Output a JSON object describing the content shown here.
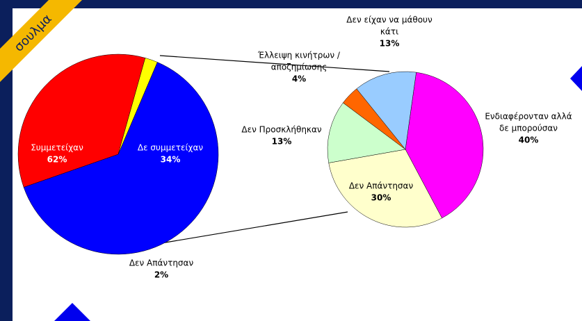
{
  "ribbon": "σουλμα",
  "chart_data": [
    {
      "type": "pie",
      "categories": [
        [
          "Συμμετείχαν"
        ],
        [
          "Δε συμμετείχαν"
        ],
        [
          "Δεν Απάντησαν"
        ]
      ],
      "values": [
        62,
        34,
        2
      ],
      "value_labels": [
        "62%",
        "34%",
        "2%"
      ],
      "colors": [
        "#0000ff",
        "#ff0000",
        "#ffff00"
      ]
    },
    {
      "type": "pie",
      "categories": [
        [
          "Ενδιαφέρονταν αλλά",
          "δε μπορούσαν"
        ],
        [
          "Δεν Απάντησαν"
        ],
        [
          "Δεν Προσκλήθηκαν"
        ],
        [
          "Έλλειψη κινήτρων /",
          "αποζημίωσης"
        ],
        [
          "Δεν είχαν να μάθουν",
          "κάτι"
        ]
      ],
      "values": [
        40,
        30,
        13,
        4,
        13
      ],
      "value_labels": [
        "40%",
        "30%",
        "13%",
        "4%",
        "13%"
      ],
      "colors": [
        "#ff00ff",
        "#ffffcc",
        "#ccffcc",
        "#ff6600",
        "#99ccff"
      ]
    }
  ]
}
